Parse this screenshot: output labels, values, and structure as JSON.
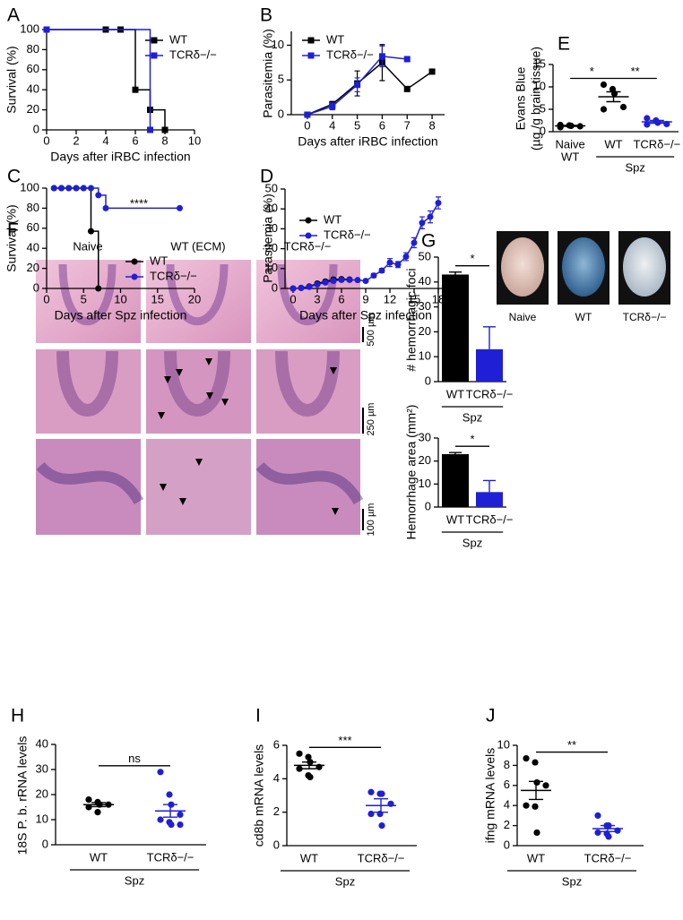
{
  "chart_data": [
    {
      "panel": "A",
      "type": "line",
      "step": true,
      "marker": "square",
      "ylabel": "Survival (%)",
      "xlabel": "Days after iRBC infection",
      "xlim": [
        0,
        10
      ],
      "xticks": [
        0,
        2,
        4,
        6,
        8,
        10
      ],
      "ylim": [
        0,
        100
      ],
      "yticks": [
        0,
        20,
        40,
        60,
        80,
        100
      ],
      "legend": "upper right",
      "series": [
        {
          "name": "WT",
          "color": "#000000",
          "x": [
            0,
            4,
            5,
            6,
            7,
            8
          ],
          "values": [
            100,
            100,
            100,
            40,
            20,
            0
          ]
        },
        {
          "name": "TCRδ−/−",
          "color": "#1f1fd6",
          "x": [
            0,
            7
          ],
          "values": [
            100,
            0
          ]
        }
      ]
    },
    {
      "panel": "B",
      "type": "line",
      "marker": "square",
      "ylabel": "Parasitemia (%)",
      "xlabel": "Days after iRBC infection",
      "categories": [
        "0",
        "4",
        "5",
        "6",
        "7",
        "8"
      ],
      "ylim": [
        0,
        12
      ],
      "yticks": [
        0,
        5,
        10
      ],
      "legend": "upper left",
      "series": [
        {
          "name": "WT",
          "color": "#000000",
          "values": [
            0,
            1.5,
            4.5,
            7.5,
            3.7,
            6.2
          ],
          "errors": [
            0,
            0.4,
            1.8,
            2.6,
            0,
            0
          ]
        },
        {
          "name": "TCRδ−/−",
          "color": "#1f1fd6",
          "values": [
            0,
            1.2,
            4.3,
            8.4,
            8,
            null
          ],
          "errors": [
            0,
            0.5,
            1,
            1.5,
            0,
            null
          ]
        }
      ]
    },
    {
      "panel": "C",
      "type": "line",
      "step": true,
      "marker": "circle",
      "ylabel": "Survival (%)",
      "xlabel": "Days after Spz infection",
      "xlim": [
        0,
        20
      ],
      "xticks": [
        0,
        5,
        10,
        15,
        20
      ],
      "ylim": [
        0,
        100
      ],
      "yticks": [
        0,
        20,
        40,
        60,
        80,
        100
      ],
      "legend": "center right",
      "annotation": "****",
      "series": [
        {
          "name": "WT",
          "color": "#000000",
          "x": [
            1,
            2,
            3,
            4,
            5,
            6,
            7
          ],
          "values": [
            100,
            100,
            100,
            100,
            100,
            57,
            0
          ]
        },
        {
          "name": "TCRδ−/−",
          "color": "#1f1fd6",
          "x": [
            1,
            2,
            3,
            4,
            5,
            6,
            7,
            8,
            18
          ],
          "values": [
            100,
            100,
            100,
            100,
            100,
            100,
            93,
            80,
            80
          ]
        }
      ]
    },
    {
      "panel": "D",
      "type": "line",
      "marker": "circle",
      "ylabel": "Parasitemia (%)",
      "xlabel": "Days after Spz infection",
      "xlim": [
        -1,
        19
      ],
      "xticks": [
        0,
        3,
        6,
        9,
        12,
        15,
        18
      ],
      "ylim": [
        0,
        50
      ],
      "yticks": [
        0,
        10,
        20,
        30,
        40,
        50
      ],
      "legend": "upper left",
      "series": [
        {
          "name": "WT",
          "color": "#000000",
          "x": [
            0,
            1,
            2,
            3,
            4,
            5,
            6,
            7
          ],
          "values": [
            0,
            0.3,
            1,
            2.5,
            3.5,
            4.5,
            4.7,
            4.5
          ],
          "errors": [
            0,
            0,
            0.3,
            0.8,
            0.8,
            0.8,
            0.8,
            0.7
          ]
        },
        {
          "name": "TCRδ−/−",
          "color": "#1f1fd6",
          "x": [
            0,
            1,
            2,
            3,
            4,
            5,
            6,
            7,
            8,
            9,
            10,
            11,
            12,
            13,
            14,
            15,
            16,
            17,
            18
          ],
          "values": [
            0,
            0.2,
            0.8,
            2,
            3,
            3.8,
            4.3,
            4.3,
            4.2,
            3.8,
            6.5,
            9,
            13,
            12,
            16,
            23,
            33,
            36,
            43
          ],
          "errors": [
            0,
            0,
            0,
            0.5,
            0.5,
            0.5,
            0.7,
            0.7,
            0.5,
            0.5,
            1,
            1,
            2,
            1.5,
            2,
            2.5,
            3,
            3,
            3
          ]
        }
      ]
    },
    {
      "panel": "E",
      "type": "dot",
      "ylabel": [
        "Evans Blue",
        "(µg /g brain tissue)"
      ],
      "ylim": [
        0,
        15
      ],
      "yticks": [
        0,
        5,
        10,
        15
      ],
      "categories": [
        "Naive",
        "WT",
        "TCRδ−/−"
      ],
      "colors": [
        "#000000",
        "#000000",
        "#1f1fd6"
      ],
      "values": [
        [
          1.5,
          1.4,
          1.3,
          1.2,
          1.0
        ],
        [
          10.5,
          9.5,
          8.5,
          5.5,
          5.0
        ],
        [
          3.0,
          2.5,
          2.0,
          1.7,
          1.6
        ]
      ],
      "means": [
        1.3,
        7.8,
        2.2
      ],
      "errors": [
        0.1,
        1.1,
        0.3
      ],
      "groups": [
        {
          "label": "WT",
          "categories": [
            "Naive"
          ]
        },
        {
          "label": "Spz",
          "categories": [
            "WT",
            "TCRδ−/−"
          ]
        }
      ],
      "significance": [
        {
          "label": "*",
          "between": [
            "Naive",
            "WT"
          ]
        },
        {
          "label": "**",
          "between": [
            "WT",
            "TCRδ−/−"
          ]
        }
      ]
    },
    {
      "panel": "G",
      "type": "bar",
      "ylabel": "# hemorrhagic foci",
      "ylim": [
        0,
        50
      ],
      "yticks": [
        0,
        10,
        20,
        30,
        40,
        50
      ],
      "categories": [
        "WT",
        "TCRδ−/−"
      ],
      "colors": [
        "#000000",
        "#1f1fd6"
      ],
      "values": [
        43,
        13
      ],
      "errors": [
        1,
        9
      ],
      "groups": [
        {
          "label": "Spz",
          "categories": [
            "WT",
            "TCRδ−/−"
          ]
        }
      ],
      "significance": [
        {
          "label": "*",
          "between": [
            "WT",
            "TCRδ−/−"
          ]
        }
      ]
    },
    {
      "type": "bar",
      "ylabel": "Hemorrhage area (mm²)",
      "ylim": [
        0,
        30
      ],
      "yticks": [
        0,
        10,
        20,
        30
      ],
      "categories": [
        "WT",
        "TCRδ−/−"
      ],
      "colors": [
        "#000000",
        "#1f1fd6"
      ],
      "values": [
        23,
        6.5
      ],
      "errors": [
        0.7,
        5
      ],
      "groups": [
        {
          "label": "Spz",
          "categories": [
            "WT",
            "TCRδ−/−"
          ]
        }
      ],
      "significance": [
        {
          "label": "*",
          "between": [
            "WT",
            "TCRδ−/−"
          ]
        }
      ]
    },
    {
      "panel": "H",
      "type": "dot",
      "ylabel": "18S P. b. rRNA levels",
      "ylim": [
        0,
        40
      ],
      "yticks": [
        0,
        10,
        20,
        30,
        40
      ],
      "categories": [
        "WT",
        "TCRδ−/−"
      ],
      "colors": [
        "#000000",
        "#1f1fd6"
      ],
      "values": [
        [
          18,
          17,
          16,
          16,
          15,
          13
        ],
        [
          29,
          20,
          16,
          12,
          10,
          9,
          8,
          8
        ]
      ],
      "means": [
        16,
        13.5
      ],
      "errors": [
        0.8,
        2.5
      ],
      "groups": [
        {
          "label": "Spz",
          "categories": [
            "WT",
            "TCRδ−/−"
          ]
        }
      ],
      "significance": [
        {
          "label": "ns",
          "between": [
            "WT",
            "TCRδ−/−"
          ]
        }
      ]
    },
    {
      "panel": "I",
      "type": "dot",
      "ylabel": "cd8b mRNA levels",
      "ylim": [
        0,
        6
      ],
      "yticks": [
        0,
        2,
        4,
        6
      ],
      "categories": [
        "WT",
        "TCRδ−/−"
      ],
      "colors": [
        "#000000",
        "#1f1fd6"
      ],
      "values": [
        [
          5.5,
          5.3,
          5.0,
          4.7,
          4.6,
          4.2,
          4.1
        ],
        [
          3.2,
          3.1,
          3.1,
          2.5,
          1.9,
          1.9,
          1.2
        ]
      ],
      "means": [
        4.8,
        2.4
      ],
      "errors": [
        0.2,
        0.4
      ],
      "groups": [
        {
          "label": "Spz",
          "categories": [
            "WT",
            "TCRδ−/−"
          ]
        }
      ],
      "significance": [
        {
          "label": "***",
          "between": [
            "WT",
            "TCRδ−/−"
          ]
        }
      ]
    },
    {
      "panel": "J",
      "type": "dot",
      "ylabel": "ifng mRNA levels",
      "ylim": [
        0,
        10
      ],
      "yticks": [
        0,
        2,
        4,
        6,
        8,
        10
      ],
      "categories": [
        "WT",
        "TCRδ−/−"
      ],
      "colors": [
        "#000000",
        "#1f1fd6"
      ],
      "values": [
        [
          8.7,
          8.3,
          6.3,
          6.0,
          4.0,
          3.9,
          1.3
        ],
        [
          3.0,
          2.0,
          2.0,
          1.5,
          1.3,
          1.2,
          0.9
        ]
      ],
      "means": [
        5.5,
        1.7
      ],
      "errors": [
        0.9,
        0.3
      ],
      "groups": [
        {
          "label": "Spz",
          "categories": [
            "WT",
            "TCRδ−/−"
          ]
        }
      ],
      "significance": [
        {
          "label": "**",
          "between": [
            "WT",
            "TCRδ−/−"
          ]
        }
      ]
    }
  ],
  "images": {
    "brains": {
      "labels": [
        "Naive",
        "WT",
        "TCRδ−/−"
      ]
    },
    "histology": {
      "panel": "F",
      "columns": [
        "Naive",
        "WT (ECM)",
        "TCRδ−/−"
      ],
      "scale_bars": [
        "500 µm",
        "250 µm",
        "100 µm"
      ]
    }
  }
}
